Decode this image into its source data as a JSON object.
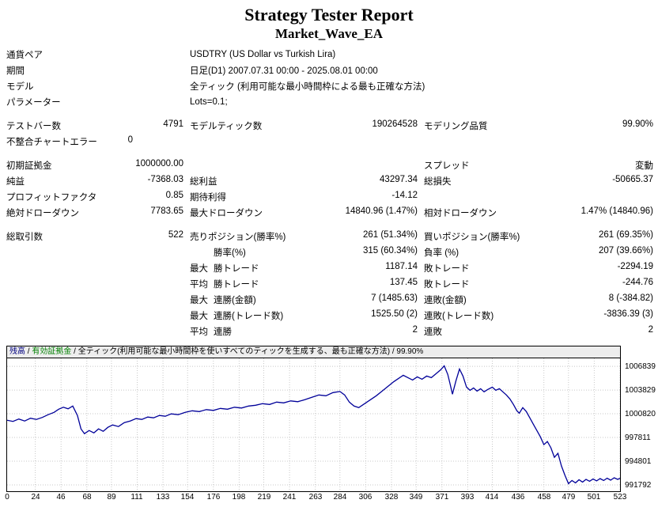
{
  "title": "Strategy Tester Report",
  "subtitle": "Market_Wave_EA",
  "report": {
    "rows": [
      {
        "a_label": "通貨ペア",
        "b_label": "USDTRY (US Dollar vs Turkish Lira)"
      },
      {
        "a_label": "期間",
        "b_label": "日足(D1) 2007.07.31 00:00 - 2025.08.01 00:00"
      },
      {
        "a_label": "モデル",
        "b_label": "全ティック (利用可能な最小時間枠による最も正確な方法)"
      },
      {
        "a_label": "パラメーター",
        "b_label": "Lots=0.1;"
      },
      {
        "spacer": true
      },
      {
        "a_label": "テストバー数",
        "a_value": "4791",
        "b_label": "モデルティック数",
        "b_value": "190264528",
        "c_label": "モデリング品質",
        "c_value": "99.90%"
      },
      {
        "a_label": "不整合チャートエラー",
        "a_value": "0",
        "a_pad": 64
      },
      {
        "spacer": true
      },
      {
        "a_label": "初期証拠金",
        "a_value": "1000000.00",
        "c_label": "スプレッド",
        "c_value": "変動"
      },
      {
        "a_label": "純益",
        "a_value": "-7368.03",
        "b_label": "総利益",
        "b_value": "43297.34",
        "c_label": "総損失",
        "c_value": "-50665.37"
      },
      {
        "a_label": "プロフィットファクタ",
        "a_value": "0.85",
        "b_label": "期待利得",
        "b_value": "-14.12"
      },
      {
        "a_label": "絶対ドローダウン",
        "a_value": "7783.65",
        "b_label": "最大ドローダウン",
        "b_value": "14840.96 (1.47%)",
        "c_label": "相対ドローダウン",
        "c_value": "1.47% (14840.96)"
      },
      {
        "spacer": true
      },
      {
        "a_label": "総取引数",
        "a_value": "522",
        "b_label": "売りポジション(勝率%)",
        "b_value": "261 (51.34%)",
        "c_label": "買いポジション(勝率%)",
        "c_value": "261 (69.35%)"
      },
      {
        "b_prefix": "",
        "b_label": "勝率(%)",
        "b_value": "315 (60.34%)",
        "c_label": "負率 (%)",
        "c_value": "207 (39.66%)"
      },
      {
        "b_prefix": "最大",
        "b_label": "勝トレード",
        "b_value": "1187.14",
        "c_label": "敗トレード",
        "c_value": "-2294.19"
      },
      {
        "b_prefix": "平均",
        "b_label": "勝トレード",
        "b_value": "137.45",
        "c_label": "敗トレード",
        "c_value": "-244.76"
      },
      {
        "b_prefix": "最大",
        "b_label": "連勝(金額)",
        "b_value": "7 (1485.63)",
        "c_label": "連敗(金額)",
        "c_value": "8 (-384.82)"
      },
      {
        "b_prefix": "最大",
        "b_label": "連勝(トレード数)",
        "b_value": "1525.50 (2)",
        "c_label": "連敗(トレード数)",
        "c_value": "-3836.39 (3)"
      },
      {
        "b_prefix": "平均",
        "b_label": "連勝",
        "b_value": "2",
        "c_label": "連敗",
        "c_value": "2"
      }
    ]
  },
  "chart_data": {
    "type": "line",
    "legend": {
      "balance": "残高",
      "equity": "有効証拠金",
      "model": "全ティック(利用可能な最小時間枠を使いすべてのティックを生成する、最も正確な方法)",
      "quality": "99.90%",
      "sep": " / "
    },
    "y_ticks": [
      1006839,
      1003829,
      1000820,
      997811,
      994801,
      991792
    ],
    "x_ticks": [
      0,
      24,
      46,
      68,
      89,
      111,
      133,
      154,
      176,
      198,
      219,
      241,
      263,
      284,
      306,
      328,
      349,
      371,
      393,
      414,
      436,
      458,
      479,
      501,
      523
    ],
    "x_range": [
      0,
      523
    ],
    "y_range": [
      990990,
      1007850
    ],
    "line_color": "#000099",
    "grid_color": "#c8c8c8",
    "series": [
      {
        "name": "残高",
        "points": [
          [
            0,
            1000000
          ],
          [
            5,
            999850
          ],
          [
            10,
            1000150
          ],
          [
            15,
            999900
          ],
          [
            20,
            1000250
          ],
          [
            25,
            1000100
          ],
          [
            30,
            1000350
          ],
          [
            35,
            1000700
          ],
          [
            40,
            1001000
          ],
          [
            44,
            1001400
          ],
          [
            48,
            1001650
          ],
          [
            52,
            1001450
          ],
          [
            56,
            1001800
          ],
          [
            60,
            1000600
          ],
          [
            63,
            998900
          ],
          [
            66,
            998300
          ],
          [
            70,
            998700
          ],
          [
            74,
            998400
          ],
          [
            78,
            998900
          ],
          [
            82,
            998600
          ],
          [
            86,
            999100
          ],
          [
            90,
            999400
          ],
          [
            95,
            999200
          ],
          [
            100,
            999700
          ],
          [
            105,
            999900
          ],
          [
            110,
            1000200
          ],
          [
            115,
            1000100
          ],
          [
            120,
            1000400
          ],
          [
            125,
            1000300
          ],
          [
            130,
            1000600
          ],
          [
            135,
            1000500
          ],
          [
            140,
            1000800
          ],
          [
            146,
            1000700
          ],
          [
            152,
            1001000
          ],
          [
            158,
            1001200
          ],
          [
            164,
            1001100
          ],
          [
            170,
            1001350
          ],
          [
            176,
            1001250
          ],
          [
            182,
            1001500
          ],
          [
            188,
            1001400
          ],
          [
            194,
            1001650
          ],
          [
            200,
            1001550
          ],
          [
            206,
            1001800
          ],
          [
            212,
            1001900
          ],
          [
            218,
            1002100
          ],
          [
            224,
            1002000
          ],
          [
            230,
            1002300
          ],
          [
            236,
            1002200
          ],
          [
            242,
            1002450
          ],
          [
            248,
            1002350
          ],
          [
            254,
            1002600
          ],
          [
            260,
            1002900
          ],
          [
            266,
            1003200
          ],
          [
            272,
            1003100
          ],
          [
            278,
            1003500
          ],
          [
            284,
            1003650
          ],
          [
            288,
            1003200
          ],
          [
            292,
            1002300
          ],
          [
            296,
            1001800
          ],
          [
            300,
            1001600
          ],
          [
            305,
            1002100
          ],
          [
            310,
            1002600
          ],
          [
            315,
            1003100
          ],
          [
            320,
            1003700
          ],
          [
            325,
            1004300
          ],
          [
            330,
            1004900
          ],
          [
            334,
            1005300
          ],
          [
            338,
            1005700
          ],
          [
            342,
            1005400
          ],
          [
            346,
            1005100
          ],
          [
            350,
            1005500
          ],
          [
            354,
            1005200
          ],
          [
            358,
            1005600
          ],
          [
            362,
            1005400
          ],
          [
            366,
            1005900
          ],
          [
            370,
            1006400
          ],
          [
            373,
            1006900
          ],
          [
            376,
            1005800
          ],
          [
            378,
            1004600
          ],
          [
            380,
            1003300
          ],
          [
            383,
            1005000
          ],
          [
            386,
            1006500
          ],
          [
            389,
            1005600
          ],
          [
            392,
            1004200
          ],
          [
            395,
            1003800
          ],
          [
            398,
            1004100
          ],
          [
            401,
            1003700
          ],
          [
            404,
            1004000
          ],
          [
            407,
            1003600
          ],
          [
            410,
            1003900
          ],
          [
            414,
            1004200
          ],
          [
            417,
            1003800
          ],
          [
            420,
            1004000
          ],
          [
            423,
            1003600
          ],
          [
            426,
            1003200
          ],
          [
            429,
            1002700
          ],
          [
            432,
            1002000
          ],
          [
            435,
            1001200
          ],
          [
            437,
            1000900
          ],
          [
            440,
            1001600
          ],
          [
            443,
            1001100
          ],
          [
            446,
            1000300
          ],
          [
            449,
            999500
          ],
          [
            452,
            998700
          ],
          [
            455,
            997900
          ],
          [
            458,
            996900
          ],
          [
            461,
            997300
          ],
          [
            464,
            996500
          ],
          [
            467,
            995300
          ],
          [
            470,
            995800
          ],
          [
            473,
            994200
          ],
          [
            476,
            993000
          ],
          [
            479,
            991950
          ],
          [
            482,
            992350
          ],
          [
            485,
            992050
          ],
          [
            488,
            992450
          ],
          [
            491,
            992150
          ],
          [
            494,
            992500
          ],
          [
            497,
            992250
          ],
          [
            500,
            992550
          ],
          [
            503,
            992300
          ],
          [
            506,
            992600
          ],
          [
            509,
            992350
          ],
          [
            512,
            992650
          ],
          [
            515,
            992400
          ],
          [
            518,
            992700
          ],
          [
            521,
            992500
          ],
          [
            523,
            992632
          ]
        ]
      }
    ]
  }
}
